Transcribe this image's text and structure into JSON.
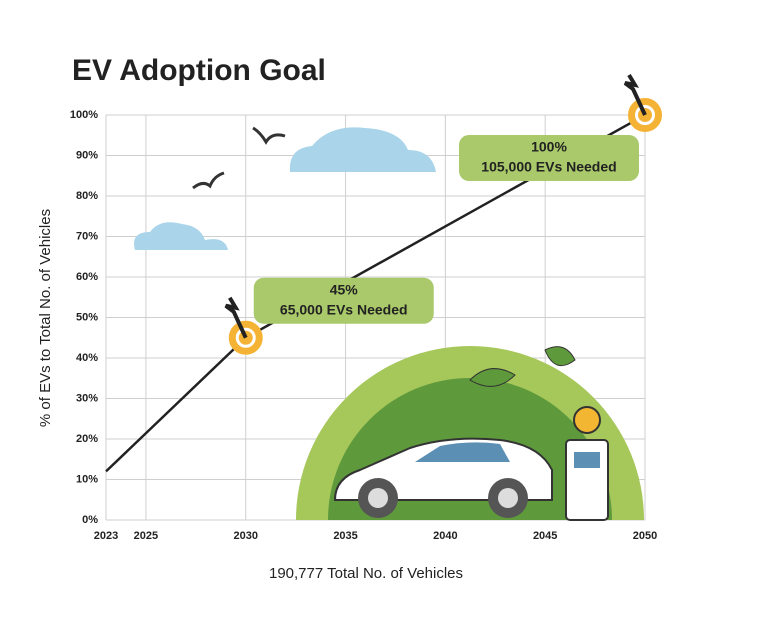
{
  "chart_data": {
    "type": "line",
    "title": "EV Adoption Goal",
    "x_label": "190,777 Total No. of Vehicles",
    "y_label": "% of EVs to Total No. of Vehicles",
    "x": [
      2023,
      2030,
      2050
    ],
    "values": [
      12,
      45,
      100
    ],
    "color": "#222222",
    "xlim": [
      2023,
      2050
    ],
    "xticks": [
      2023,
      2025,
      2030,
      2035,
      2040,
      2045,
      2050
    ],
    "ylim": [
      0,
      100
    ],
    "yticks": [
      {
        "value": 0,
        "label": "0%"
      },
      {
        "value": 10,
        "label": "10%"
      },
      {
        "value": 20,
        "label": "20%"
      },
      {
        "value": 30,
        "label": "30%"
      },
      {
        "value": 40,
        "label": "40%"
      },
      {
        "value": 50,
        "label": "50%"
      },
      {
        "value": 60,
        "label": "60%"
      },
      {
        "value": 70,
        "label": "70%"
      },
      {
        "value": 80,
        "label": "80%"
      },
      {
        "value": 90,
        "label": "90%"
      },
      {
        "value": 100,
        "label": "100%"
      }
    ],
    "grid": true,
    "annotations": [
      {
        "x": 2030,
        "y": 45,
        "lines": [
          "45%",
          "65,000 EVs Needed"
        ]
      },
      {
        "x": 2050,
        "y": 100,
        "lines": [
          "100%",
          "105,000 EVs Needed"
        ]
      }
    ]
  }
}
